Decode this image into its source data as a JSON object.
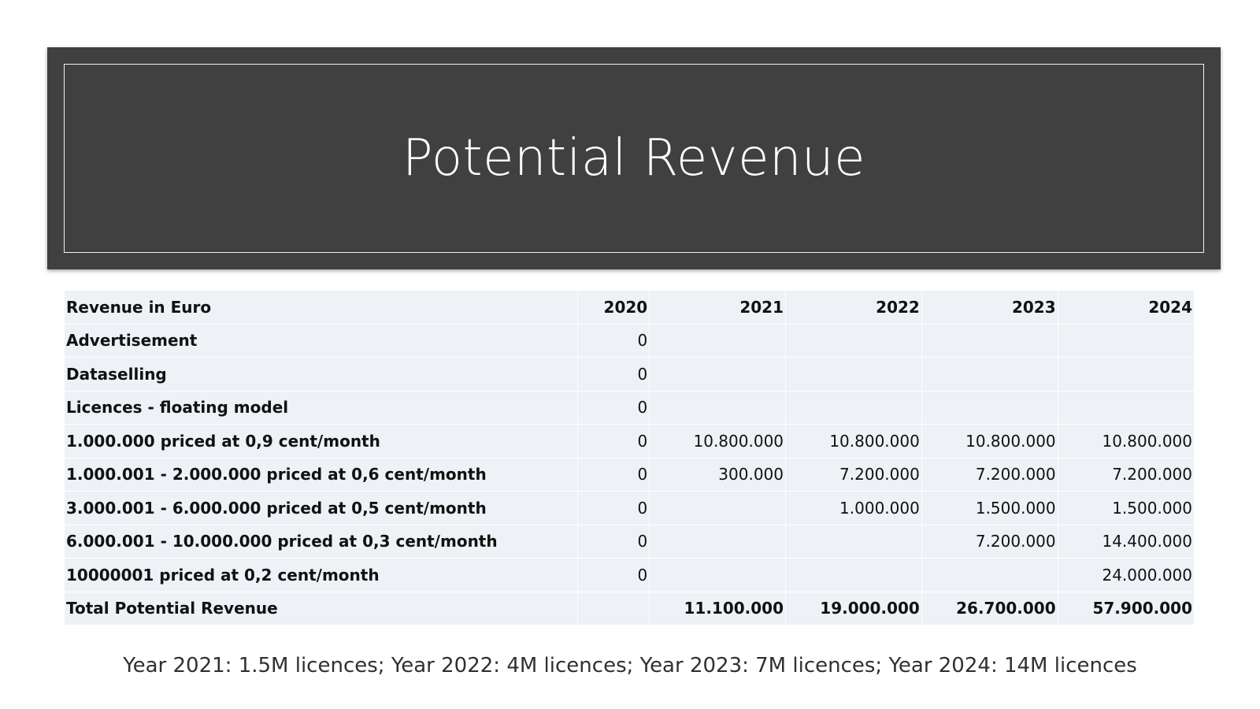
{
  "slide": {
    "title": "Potential Revenue",
    "footnote": "Year 2021:  1.5M licences; Year 2022: 4M licences; Year 2023:  7M licences; Year 2024: 14M licences",
    "colors": {
      "title_band": "#404040",
      "title_text": "#ffffff",
      "table_fill": "#eef1f5"
    }
  },
  "table": {
    "header": [
      "Revenue in Euro",
      "2020",
      "2021",
      "2022",
      "2023",
      "2024"
    ],
    "rows": [
      [
        "Advertisement",
        "0",
        "",
        "",
        "",
        ""
      ],
      [
        "Dataselling",
        "0",
        "",
        "",
        "",
        ""
      ],
      [
        "Licences - floating model",
        "0",
        "",
        "",
        "",
        ""
      ],
      [
        "1.000.000 priced at 0,9 cent/month",
        "0",
        "10.800.000",
        "10.800.000",
        "10.800.000",
        "10.800.000"
      ],
      [
        "1.000.001 - 2.000.000 priced at 0,6 cent/month",
        "0",
        "300.000",
        "7.200.000",
        "7.200.000",
        "7.200.000"
      ],
      [
        "3.000.001 - 6.000.000 priced at 0,5 cent/month",
        "0",
        "",
        "1.000.000",
        "1.500.000",
        "1.500.000"
      ],
      [
        "6.000.001 - 10.000.000 priced at 0,3 cent/month",
        "0",
        "",
        "",
        "7.200.000",
        "14.400.000"
      ],
      [
        "10000001 priced at 0,2 cent/month",
        "0",
        "",
        "",
        "",
        "24.000.000"
      ]
    ],
    "total": [
      "Total Potential Revenue",
      "",
      "11.100.000",
      "19.000.000",
      "26.700.000",
      "57.900.000"
    ]
  }
}
